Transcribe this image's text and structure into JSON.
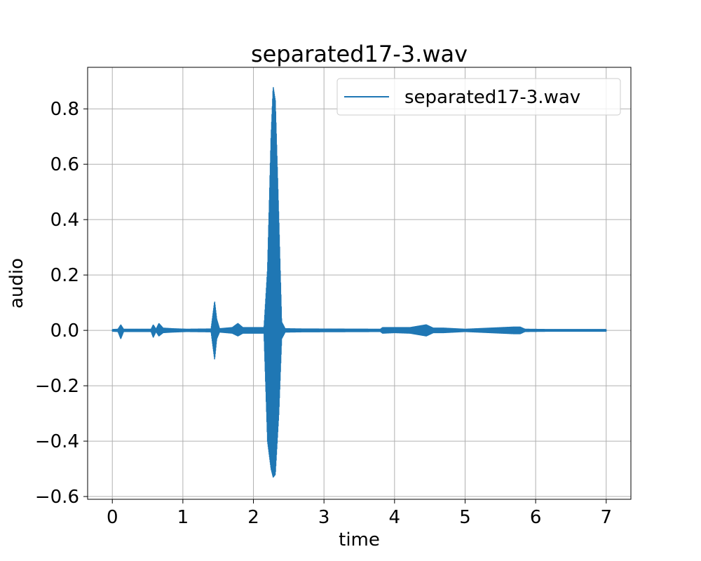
{
  "chart_data": {
    "type": "line",
    "title": "separated17-3.wav",
    "xlabel": "time",
    "ylabel": "audio",
    "xlim": [
      -0.35,
      7.35
    ],
    "ylim": [
      -0.61,
      0.95
    ],
    "xticks": [
      0,
      1,
      2,
      3,
      4,
      5,
      6,
      7
    ],
    "yticks": [
      -0.6,
      -0.4,
      -0.2,
      0.0,
      0.2,
      0.4,
      0.6,
      0.8
    ],
    "ytick_labels": [
      "−0.6",
      "−0.4",
      "−0.2",
      "0.0",
      "0.2",
      "0.4",
      "0.6",
      "0.8"
    ],
    "grid": true,
    "legend_position": "top-right",
    "color": "#1f77b4",
    "series": [
      {
        "name": "separated17-3.wav",
        "duration": 7.0,
        "envelope": [
          [
            0.0,
            0.003,
            -0.003
          ],
          [
            0.08,
            0.004,
            -0.004
          ],
          [
            0.12,
            0.02,
            -0.03
          ],
          [
            0.16,
            0.004,
            -0.004
          ],
          [
            0.55,
            0.004,
            -0.004
          ],
          [
            0.58,
            0.02,
            -0.025
          ],
          [
            0.62,
            0.004,
            -0.004
          ],
          [
            0.66,
            0.025,
            -0.02
          ],
          [
            0.72,
            0.008,
            -0.008
          ],
          [
            0.85,
            0.006,
            -0.006
          ],
          [
            1.05,
            0.004,
            -0.004
          ],
          [
            1.4,
            0.005,
            -0.005
          ],
          [
            1.45,
            0.105,
            -0.105
          ],
          [
            1.48,
            0.04,
            -0.03
          ],
          [
            1.52,
            0.006,
            -0.006
          ],
          [
            1.7,
            0.01,
            -0.01
          ],
          [
            1.78,
            0.025,
            -0.02
          ],
          [
            1.85,
            0.01,
            -0.01
          ],
          [
            2.15,
            0.01,
            -0.01
          ],
          [
            2.2,
            0.22,
            -0.4
          ],
          [
            2.25,
            0.7,
            -0.5
          ],
          [
            2.28,
            0.88,
            -0.53
          ],
          [
            2.31,
            0.83,
            -0.52
          ],
          [
            2.36,
            0.4,
            -0.3
          ],
          [
            2.4,
            0.03,
            -0.03
          ],
          [
            2.45,
            0.006,
            -0.006
          ],
          [
            2.7,
            0.005,
            -0.005
          ],
          [
            3.8,
            0.004,
            -0.004
          ],
          [
            3.83,
            0.01,
            -0.01
          ],
          [
            4.0,
            0.01,
            -0.008
          ],
          [
            4.22,
            0.01,
            -0.01
          ],
          [
            4.45,
            0.02,
            -0.02
          ],
          [
            4.55,
            0.008,
            -0.008
          ],
          [
            4.7,
            0.008,
            -0.008
          ],
          [
            5.0,
            0.004,
            -0.004
          ],
          [
            5.7,
            0.012,
            -0.012
          ],
          [
            5.78,
            0.012,
            -0.012
          ],
          [
            5.85,
            0.004,
            -0.004
          ],
          [
            6.2,
            0.003,
            -0.003
          ],
          [
            7.0,
            0.003,
            -0.003
          ]
        ]
      }
    ]
  }
}
